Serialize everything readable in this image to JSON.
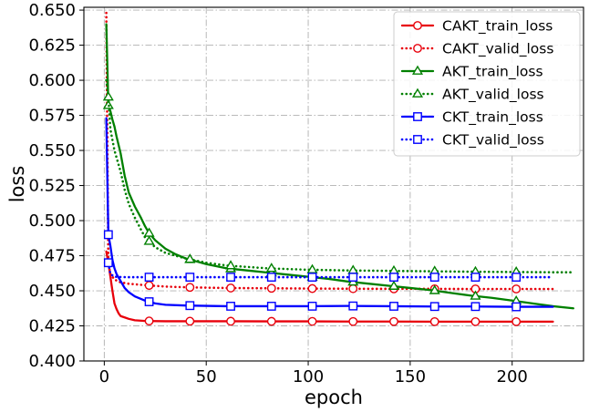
{
  "chart_data": {
    "type": "line",
    "title": "",
    "xlabel": "epoch",
    "ylabel": "loss",
    "xlim": [
      -10,
      235
    ],
    "ylim": [
      0.4,
      0.652
    ],
    "xticks": [
      0,
      50,
      100,
      150,
      200
    ],
    "yticks": [
      0.4,
      0.425,
      0.45,
      0.475,
      0.5,
      0.525,
      0.55,
      0.575,
      0.6,
      0.625,
      0.65
    ],
    "xtick_labels": [
      "0",
      "50",
      "100",
      "150",
      "200"
    ],
    "ytick_labels": [
      "0.400",
      "0.425",
      "0.450",
      "0.475",
      "0.500",
      "0.525",
      "0.550",
      "0.575",
      "0.600",
      "0.625",
      "0.650"
    ],
    "grid": true,
    "legend_position": "top-right",
    "series": [
      {
        "name": "CAKT_train_loss",
        "color": "#e8000b",
        "linestyle": "solid",
        "marker": "circle",
        "x": [
          1,
          2,
          3,
          4,
          5,
          6,
          7,
          8,
          10,
          12,
          15,
          20,
          30,
          40,
          60,
          80,
          100,
          120,
          140,
          160,
          180,
          200,
          220
        ],
        "y": [
          0.478,
          0.47,
          0.46,
          0.45,
          0.441,
          0.437,
          0.434,
          0.432,
          0.431,
          0.43,
          0.429,
          0.4285,
          0.4283,
          0.4283,
          0.4283,
          0.4282,
          0.4282,
          0.4281,
          0.4281,
          0.428,
          0.428,
          0.428,
          0.428
        ]
      },
      {
        "name": "CAKT_valid_loss",
        "color": "#e8000b",
        "linestyle": "dotted",
        "marker": "circle",
        "x": [
          1,
          2,
          3,
          5,
          8,
          12,
          20,
          30,
          40,
          60,
          80,
          100,
          120,
          140,
          160,
          180,
          200,
          220
        ],
        "y": [
          0.648,
          0.47,
          0.462,
          0.458,
          0.456,
          0.455,
          0.454,
          0.453,
          0.4525,
          0.452,
          0.4518,
          0.4516,
          0.4515,
          0.4514,
          0.4514,
          0.4513,
          0.4513,
          0.4513
        ]
      },
      {
        "name": "AKT_train_loss",
        "color": "#008000",
        "linestyle": "solid",
        "marker": "triangle",
        "x": [
          1,
          2,
          3,
          4,
          5,
          6,
          8,
          10,
          12,
          15,
          18,
          20,
          22,
          25,
          30,
          35,
          40,
          45,
          50,
          60,
          70,
          80,
          90,
          100,
          110,
          120,
          130,
          140,
          150,
          160,
          170,
          180,
          190,
          200,
          210,
          220,
          230
        ],
        "y": [
          0.64,
          0.582,
          0.578,
          0.572,
          0.567,
          0.56,
          0.548,
          0.532,
          0.52,
          0.51,
          0.502,
          0.496,
          0.491,
          0.486,
          0.48,
          0.476,
          0.473,
          0.471,
          0.469,
          0.466,
          0.4645,
          0.463,
          0.4615,
          0.46,
          0.4585,
          0.4565,
          0.455,
          0.4535,
          0.452,
          0.4505,
          0.4485,
          0.4465,
          0.445,
          0.443,
          0.441,
          0.439,
          0.4375
        ]
      },
      {
        "name": "AKT_valid_loss",
        "color": "#008000",
        "linestyle": "dotted",
        "marker": "triangle",
        "x": [
          1,
          2,
          3,
          5,
          8,
          10,
          12,
          15,
          20,
          25,
          30,
          40,
          50,
          60,
          80,
          100,
          120,
          140,
          160,
          180,
          200,
          220,
          230
        ],
        "y": [
          0.6,
          0.588,
          0.565,
          0.55,
          0.535,
          0.522,
          0.512,
          0.502,
          0.488,
          0.481,
          0.477,
          0.473,
          0.47,
          0.468,
          0.466,
          0.465,
          0.4645,
          0.4642,
          0.4639,
          0.4636,
          0.4634,
          0.4632,
          0.4632
        ]
      },
      {
        "name": "CKT_train_loss",
        "color": "#0000ff",
        "linestyle": "solid",
        "marker": "square",
        "x": [
          1,
          2,
          3,
          4,
          5,
          6,
          8,
          10,
          12,
          15,
          20,
          25,
          30,
          40,
          60,
          80,
          100,
          120,
          140,
          160,
          180,
          200,
          220
        ],
        "y": [
          0.573,
          0.49,
          0.482,
          0.472,
          0.466,
          0.462,
          0.457,
          0.452,
          0.449,
          0.446,
          0.443,
          0.441,
          0.44,
          0.4395,
          0.439,
          0.439,
          0.439,
          0.4392,
          0.439,
          0.4388,
          0.4388,
          0.4386,
          0.4386
        ]
      },
      {
        "name": "CKT_valid_loss",
        "color": "#0000ff",
        "linestyle": "dotted",
        "marker": "square",
        "x": [
          1,
          2,
          3,
          5,
          8,
          12,
          20,
          40,
          60,
          80,
          100,
          120,
          140,
          160,
          180,
          200,
          220
        ],
        "y": [
          0.472,
          0.47,
          0.462,
          0.46,
          0.4598,
          0.4597,
          0.4597,
          0.4597,
          0.4597,
          0.4597,
          0.4597,
          0.4597,
          0.4597,
          0.4597,
          0.4597,
          0.4597,
          0.4597
        ]
      }
    ]
  }
}
